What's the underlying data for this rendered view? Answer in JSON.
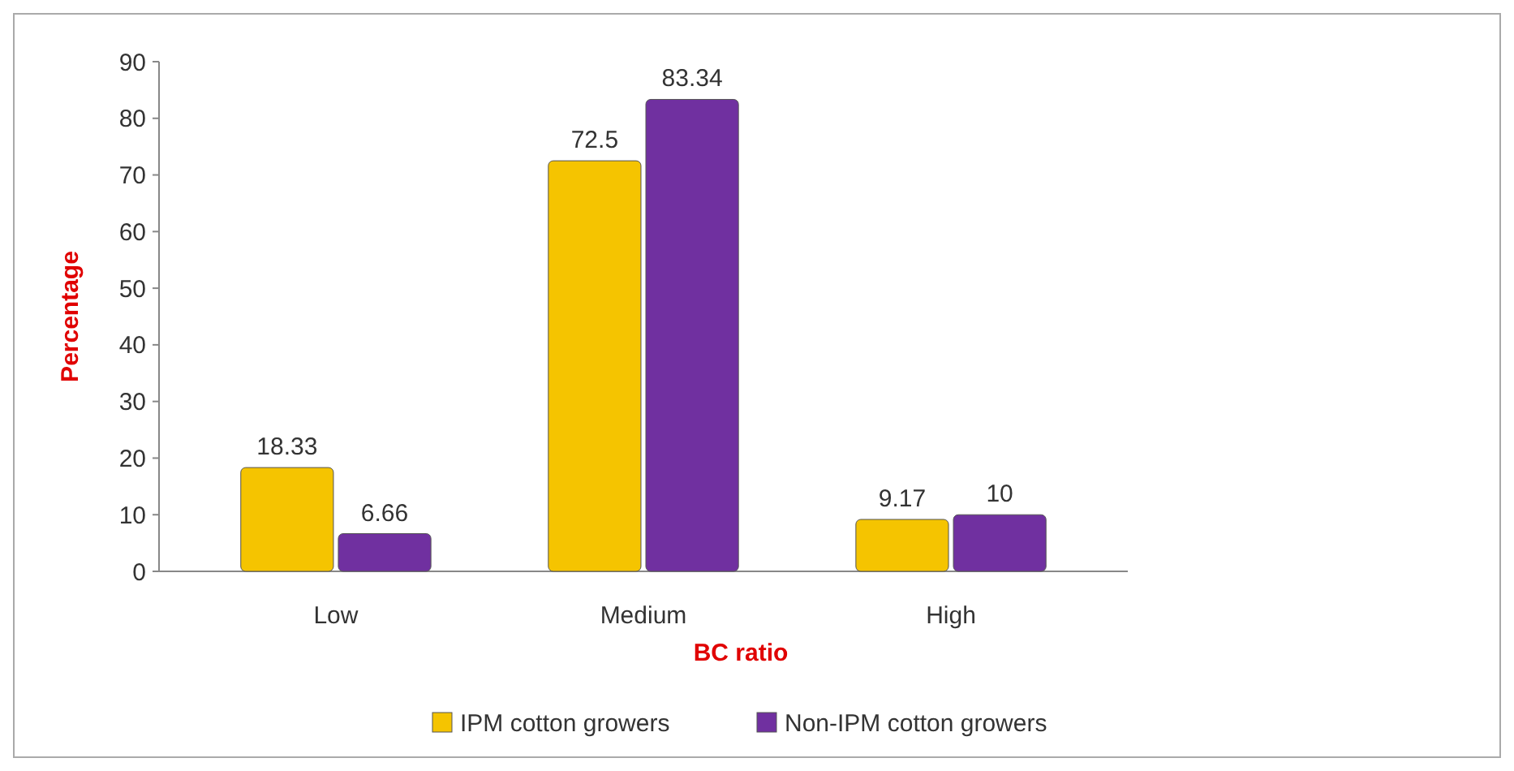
{
  "chart_data": {
    "type": "bar",
    "categories": [
      "Low",
      "Medium",
      "High"
    ],
    "series": [
      {
        "name": "IPM cotton growers",
        "color": "#f5c400",
        "values": [
          18.33,
          72.5,
          9.17
        ]
      },
      {
        "name": "Non-IPM cotton growers",
        "color": "#7030a0",
        "values": [
          6.66,
          83.34,
          10
        ]
      }
    ],
    "ylim": [
      0,
      90
    ],
    "yticks": [
      0,
      10,
      20,
      30,
      40,
      50,
      60,
      70,
      80,
      90
    ],
    "xlabel": "BC ratio",
    "ylabel": "Percentage",
    "data_labels": true,
    "legend": "bottom",
    "grid": false
  }
}
